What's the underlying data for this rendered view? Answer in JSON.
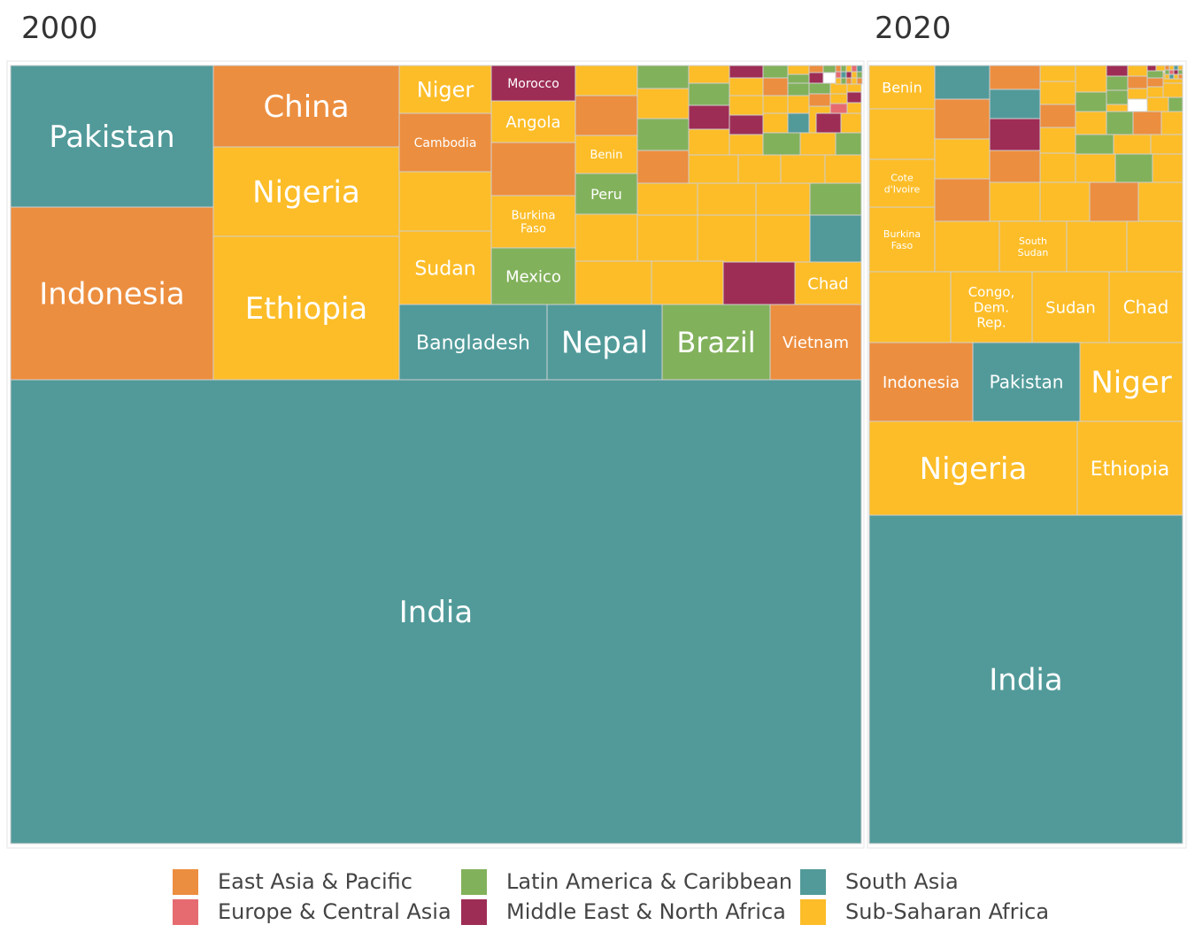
{
  "chart_data": {
    "type": "treemap",
    "panels": [
      {
        "title": "2000",
        "named_tiles": [
          {
            "label": "India",
            "region": "South Asia"
          },
          {
            "label": "Pakistan",
            "region": "South Asia"
          },
          {
            "label": "Indonesia",
            "region": "East Asia & Pacific"
          },
          {
            "label": "China",
            "region": "East Asia & Pacific"
          },
          {
            "label": "Nigeria",
            "region": "Sub-Saharan Africa"
          },
          {
            "label": "Ethiopia",
            "region": "Sub-Saharan Africa"
          },
          {
            "label": "Niger",
            "region": "Sub-Saharan Africa"
          },
          {
            "label": "Cambodia",
            "region": "East Asia & Pacific"
          },
          {
            "label": "Sudan",
            "region": "Sub-Saharan Africa"
          },
          {
            "label": "Morocco",
            "region": "Middle East & North Africa"
          },
          {
            "label": "Angola",
            "region": "Sub-Saharan Africa"
          },
          {
            "label": "Burkina Faso",
            "region": "Sub-Saharan Africa"
          },
          {
            "label": "Mexico",
            "region": "Latin America & Caribbean"
          },
          {
            "label": "Benin",
            "region": "Sub-Saharan Africa"
          },
          {
            "label": "Peru",
            "region": "Latin America & Caribbean"
          },
          {
            "label": "Chad",
            "region": "Sub-Saharan Africa"
          },
          {
            "label": "Bangladesh",
            "region": "South Asia"
          },
          {
            "label": "Nepal",
            "region": "South Asia"
          },
          {
            "label": "Brazil",
            "region": "Latin America & Caribbean"
          },
          {
            "label": "Vietnam",
            "region": "East Asia & Pacific"
          }
        ]
      },
      {
        "title": "2020",
        "named_tiles": [
          {
            "label": "India",
            "region": "South Asia"
          },
          {
            "label": "Nigeria",
            "region": "Sub-Saharan Africa"
          },
          {
            "label": "Ethiopia",
            "region": "Sub-Saharan Africa"
          },
          {
            "label": "Indonesia",
            "region": "East Asia & Pacific"
          },
          {
            "label": "Pakistan",
            "region": "South Asia"
          },
          {
            "label": "Niger",
            "region": "Sub-Saharan Africa"
          },
          {
            "label": "Congo, Dem. Rep.",
            "region": "Sub-Saharan Africa"
          },
          {
            "label": "Sudan",
            "region": "Sub-Saharan Africa"
          },
          {
            "label": "Chad",
            "region": "Sub-Saharan Africa"
          },
          {
            "label": "Benin",
            "region": "Sub-Saharan Africa"
          },
          {
            "label": "Cote d'Ivoire",
            "region": "Sub-Saharan Africa"
          },
          {
            "label": "Burkina Faso",
            "region": "Sub-Saharan Africa"
          },
          {
            "label": "South Sudan",
            "region": "Sub-Saharan Africa"
          }
        ]
      }
    ],
    "legend": {
      "position": "bottom",
      "items": [
        {
          "name": "East Asia & Pacific",
          "color": "#EC8E3F"
        },
        {
          "name": "Europe & Central Asia",
          "color": "#E66B70"
        },
        {
          "name": "Latin America & Caribbean",
          "color": "#82B15B"
        },
        {
          "name": "Middle East & North Africa",
          "color": "#9E2D55"
        },
        {
          "name": "South Asia",
          "color": "#529A9A"
        },
        {
          "name": "Sub-Saharan Africa",
          "color": "#FDBD28"
        }
      ]
    }
  }
}
